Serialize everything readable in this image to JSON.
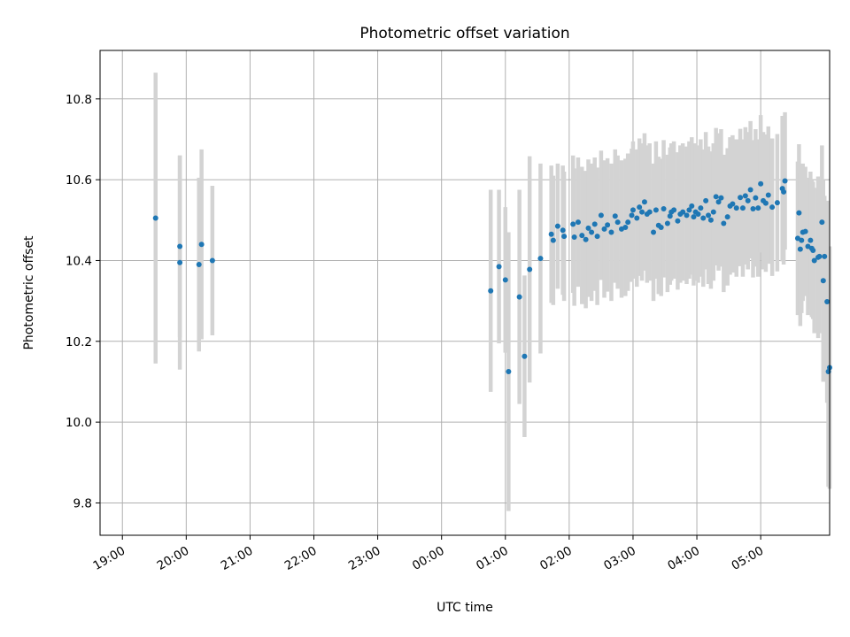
{
  "chart_data": {
    "type": "scatter",
    "title": "Photometric offset variation",
    "xlabel": "UTC time",
    "ylabel": "Photometric offset",
    "x_unit": "hours after 19:00 UTC",
    "xlim": [
      -0.35,
      11.08
    ],
    "ylim": [
      9.72,
      10.92
    ],
    "x_ticks": [
      0,
      1,
      2,
      3,
      4,
      5,
      6,
      7,
      8,
      9,
      10
    ],
    "x_tick_labels": [
      "19:00",
      "20:00",
      "21:00",
      "22:00",
      "23:00",
      "00:00",
      "01:00",
      "02:00",
      "03:00",
      "04:00",
      "05:00"
    ],
    "y_ticks": [
      9.8,
      10.0,
      10.2,
      10.4,
      10.6,
      10.8
    ],
    "y_tick_labels": [
      "9.8",
      "10.0",
      "10.2",
      "10.4",
      "10.6",
      "10.8"
    ],
    "grid": true,
    "colors": {
      "point": "#1f77b4",
      "errorbar": "#d3d3d3",
      "grid": "#b0b0b0",
      "axis": "#000000"
    },
    "series": [
      {
        "name": "Photometric offset",
        "points": [
          [
            0.52,
            10.505,
            0.36
          ],
          [
            0.9,
            10.435,
            0.225
          ],
          [
            0.9,
            10.395,
            0.265
          ],
          [
            1.2,
            10.39,
            0.215
          ],
          [
            1.24,
            10.44,
            0.235
          ],
          [
            1.41,
            10.4,
            0.185
          ],
          [
            5.77,
            10.325,
            0.25
          ],
          [
            5.9,
            10.385,
            0.19
          ],
          [
            6.0,
            10.352,
            0.18
          ],
          [
            6.05,
            10.125,
            0.345
          ],
          [
            6.22,
            10.31,
            0.265
          ],
          [
            6.3,
            10.163,
            0.2
          ],
          [
            6.38,
            10.378,
            0.28
          ],
          [
            6.55,
            10.405,
            0.235
          ],
          [
            6.72,
            10.465,
            0.17
          ],
          [
            6.75,
            10.45,
            0.16
          ],
          [
            6.82,
            10.485,
            0.155
          ],
          [
            6.9,
            10.475,
            0.16
          ],
          [
            6.92,
            10.46,
            0.16
          ],
          [
            7.06,
            10.49,
            0.17
          ],
          [
            7.08,
            10.458,
            0.17
          ],
          [
            7.14,
            10.495,
            0.16
          ],
          [
            7.2,
            10.462,
            0.17
          ],
          [
            7.26,
            10.452,
            0.17
          ],
          [
            7.3,
            10.48,
            0.17
          ],
          [
            7.35,
            10.47,
            0.17
          ],
          [
            7.4,
            10.49,
            0.165
          ],
          [
            7.44,
            10.46,
            0.17
          ],
          [
            7.5,
            10.512,
            0.16
          ],
          [
            7.55,
            10.478,
            0.17
          ],
          [
            7.6,
            10.488,
            0.165
          ],
          [
            7.66,
            10.47,
            0.17
          ],
          [
            7.72,
            10.51,
            0.165
          ],
          [
            7.76,
            10.495,
            0.165
          ],
          [
            7.82,
            10.478,
            0.17
          ],
          [
            7.88,
            10.482,
            0.17
          ],
          [
            7.92,
            10.495,
            0.17
          ],
          [
            7.98,
            10.512,
            0.165
          ],
          [
            8.0,
            10.525,
            0.17
          ],
          [
            8.06,
            10.505,
            0.17
          ],
          [
            8.1,
            10.532,
            0.17
          ],
          [
            8.14,
            10.52,
            0.17
          ],
          [
            8.18,
            10.545,
            0.17
          ],
          [
            8.22,
            10.515,
            0.17
          ],
          [
            8.26,
            10.52,
            0.17
          ],
          [
            8.32,
            10.47,
            0.17
          ],
          [
            8.36,
            10.525,
            0.17
          ],
          [
            8.4,
            10.487,
            0.17
          ],
          [
            8.44,
            10.482,
            0.17
          ],
          [
            8.48,
            10.528,
            0.17
          ],
          [
            8.54,
            10.492,
            0.17
          ],
          [
            8.58,
            10.51,
            0.17
          ],
          [
            8.6,
            10.52,
            0.17
          ],
          [
            8.64,
            10.525,
            0.17
          ],
          [
            8.7,
            10.498,
            0.17
          ],
          [
            8.74,
            10.515,
            0.17
          ],
          [
            8.78,
            10.52,
            0.17
          ],
          [
            8.84,
            10.512,
            0.17
          ],
          [
            8.88,
            10.525,
            0.17
          ],
          [
            8.92,
            10.535,
            0.17
          ],
          [
            8.95,
            10.508,
            0.17
          ],
          [
            8.98,
            10.52,
            0.17
          ],
          [
            9.02,
            10.515,
            0.17
          ],
          [
            9.06,
            10.53,
            0.17
          ],
          [
            9.1,
            10.505,
            0.17
          ],
          [
            9.14,
            10.548,
            0.17
          ],
          [
            9.18,
            10.512,
            0.17
          ],
          [
            9.22,
            10.5,
            0.17
          ],
          [
            9.26,
            10.52,
            0.17
          ],
          [
            9.3,
            10.558,
            0.17
          ],
          [
            9.34,
            10.545,
            0.17
          ],
          [
            9.38,
            10.555,
            0.17
          ],
          [
            9.42,
            10.492,
            0.17
          ],
          [
            9.48,
            10.508,
            0.17
          ],
          [
            9.52,
            10.535,
            0.17
          ],
          [
            9.56,
            10.54,
            0.17
          ],
          [
            9.62,
            10.53,
            0.17
          ],
          [
            9.68,
            10.556,
            0.17
          ],
          [
            9.72,
            10.53,
            0.17
          ],
          [
            9.76,
            10.56,
            0.17
          ],
          [
            9.8,
            10.548,
            0.17
          ],
          [
            9.84,
            10.575,
            0.17
          ],
          [
            9.88,
            10.528,
            0.17
          ],
          [
            9.92,
            10.555,
            0.17
          ],
          [
            9.96,
            10.53,
            0.17
          ],
          [
            10.0,
            10.59,
            0.17
          ],
          [
            10.04,
            10.548,
            0.17
          ],
          [
            10.08,
            10.542,
            0.17
          ],
          [
            10.12,
            10.562,
            0.17
          ],
          [
            10.18,
            10.532,
            0.17
          ],
          [
            10.26,
            10.543,
            0.17
          ],
          [
            10.34,
            10.578,
            0.18
          ],
          [
            10.36,
            10.57,
            0.18
          ],
          [
            10.38,
            10.597,
            0.17
          ],
          [
            10.58,
            10.455,
            0.19
          ],
          [
            10.6,
            10.518,
            0.17
          ],
          [
            10.62,
            10.428,
            0.19
          ],
          [
            10.64,
            10.45,
            0.18
          ],
          [
            10.66,
            10.47,
            0.17
          ],
          [
            10.7,
            10.472,
            0.16
          ],
          [
            10.74,
            10.435,
            0.17
          ],
          [
            10.78,
            10.45,
            0.17
          ],
          [
            10.8,
            10.43,
            0.17
          ],
          [
            10.82,
            10.425,
            0.17
          ],
          [
            10.84,
            10.4,
            0.18
          ],
          [
            10.9,
            10.408,
            0.2
          ],
          [
            10.92,
            10.41,
            0.19
          ],
          [
            10.96,
            10.495,
            0.19
          ],
          [
            10.98,
            10.35,
            0.25
          ],
          [
            11.0,
            10.41,
            0.15
          ],
          [
            11.04,
            10.298,
            0.25
          ],
          [
            11.06,
            10.125,
            0.285
          ],
          [
            11.08,
            10.135,
            0.3
          ]
        ]
      }
    ]
  }
}
